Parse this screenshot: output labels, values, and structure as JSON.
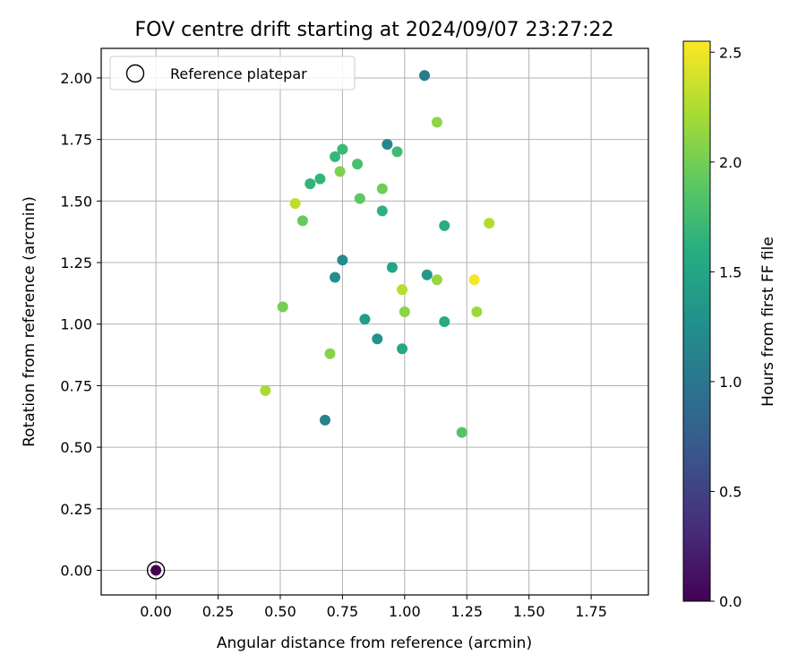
{
  "chart_data": {
    "type": "scatter",
    "title": "FOV centre drift starting at 2024/09/07 23:27:22",
    "xlabel": "Angular distance from reference (arcmin)",
    "ylabel": "Rotation from reference (arcmin)",
    "xlim": [
      -0.22,
      1.98
    ],
    "ylim": [
      -0.1,
      2.12
    ],
    "xticks": [
      0.0,
      0.25,
      0.5,
      0.75,
      1.0,
      1.25,
      1.5,
      1.75
    ],
    "xtick_labels": [
      "0.00",
      "0.25",
      "0.50",
      "0.75",
      "1.00",
      "1.25",
      "1.50",
      "1.75"
    ],
    "yticks": [
      0.0,
      0.25,
      0.5,
      0.75,
      1.0,
      1.25,
      1.5,
      1.75,
      2.0
    ],
    "ytick_labels": [
      "0.00",
      "0.25",
      "0.50",
      "0.75",
      "1.00",
      "1.25",
      "1.50",
      "1.75",
      "2.00"
    ],
    "grid": true,
    "legend": {
      "position": "top-left",
      "entries": [
        "Reference platepar"
      ]
    },
    "colorbar": {
      "label": "Hours from first FF file",
      "colormap": "viridis",
      "range": [
        0.0,
        2.55
      ],
      "ticks": [
        0.0,
        0.5,
        1.0,
        1.5,
        2.0,
        2.5
      ],
      "tick_labels": [
        "0.0",
        "0.5",
        "1.0",
        "1.5",
        "2.0",
        "2.5"
      ]
    },
    "reference_point": {
      "x": 0.0,
      "y": 0.0,
      "hours": 0.0
    },
    "points": [
      {
        "x": 0.0,
        "y": 0.0,
        "hours": 0.0
      },
      {
        "x": 1.08,
        "y": 2.01,
        "hours": 1.05
      },
      {
        "x": 0.68,
        "y": 0.61,
        "hours": 1.12
      },
      {
        "x": 0.93,
        "y": 1.73,
        "hours": 1.18
      },
      {
        "x": 0.75,
        "y": 1.26,
        "hours": 1.22
      },
      {
        "x": 0.72,
        "y": 1.19,
        "hours": 1.25
      },
      {
        "x": 0.89,
        "y": 0.94,
        "hours": 1.3
      },
      {
        "x": 1.09,
        "y": 1.2,
        "hours": 1.35
      },
      {
        "x": 0.84,
        "y": 1.02,
        "hours": 1.42
      },
      {
        "x": 0.95,
        "y": 1.23,
        "hours": 1.48
      },
      {
        "x": 0.99,
        "y": 0.9,
        "hours": 1.52
      },
      {
        "x": 1.16,
        "y": 1.01,
        "hours": 1.55
      },
      {
        "x": 1.16,
        "y": 1.4,
        "hours": 1.58
      },
      {
        "x": 0.91,
        "y": 1.46,
        "hours": 1.62
      },
      {
        "x": 0.62,
        "y": 1.57,
        "hours": 1.65
      },
      {
        "x": 0.66,
        "y": 1.59,
        "hours": 1.68
      },
      {
        "x": 0.72,
        "y": 1.68,
        "hours": 1.7
      },
      {
        "x": 0.75,
        "y": 1.71,
        "hours": 1.72
      },
      {
        "x": 0.97,
        "y": 1.7,
        "hours": 1.75
      },
      {
        "x": 0.81,
        "y": 1.65,
        "hours": 1.8
      },
      {
        "x": 1.23,
        "y": 0.56,
        "hours": 1.85
      },
      {
        "x": 0.82,
        "y": 1.51,
        "hours": 1.9
      },
      {
        "x": 0.59,
        "y": 1.42,
        "hours": 1.95
      },
      {
        "x": 0.91,
        "y": 1.55,
        "hours": 1.98
      },
      {
        "x": 0.51,
        "y": 1.07,
        "hours": 2.0
      },
      {
        "x": 0.74,
        "y": 1.62,
        "hours": 2.05
      },
      {
        "x": 0.7,
        "y": 0.88,
        "hours": 2.08
      },
      {
        "x": 1.0,
        "y": 1.05,
        "hours": 2.1
      },
      {
        "x": 1.13,
        "y": 1.82,
        "hours": 2.12
      },
      {
        "x": 1.13,
        "y": 1.18,
        "hours": 2.15
      },
      {
        "x": 1.29,
        "y": 1.05,
        "hours": 2.18
      },
      {
        "x": 0.44,
        "y": 0.73,
        "hours": 2.22
      },
      {
        "x": 1.34,
        "y": 1.41,
        "hours": 2.25
      },
      {
        "x": 0.99,
        "y": 1.14,
        "hours": 2.28
      },
      {
        "x": 0.56,
        "y": 1.49,
        "hours": 2.3
      },
      {
        "x": 1.28,
        "y": 1.18,
        "hours": 2.52
      }
    ]
  }
}
